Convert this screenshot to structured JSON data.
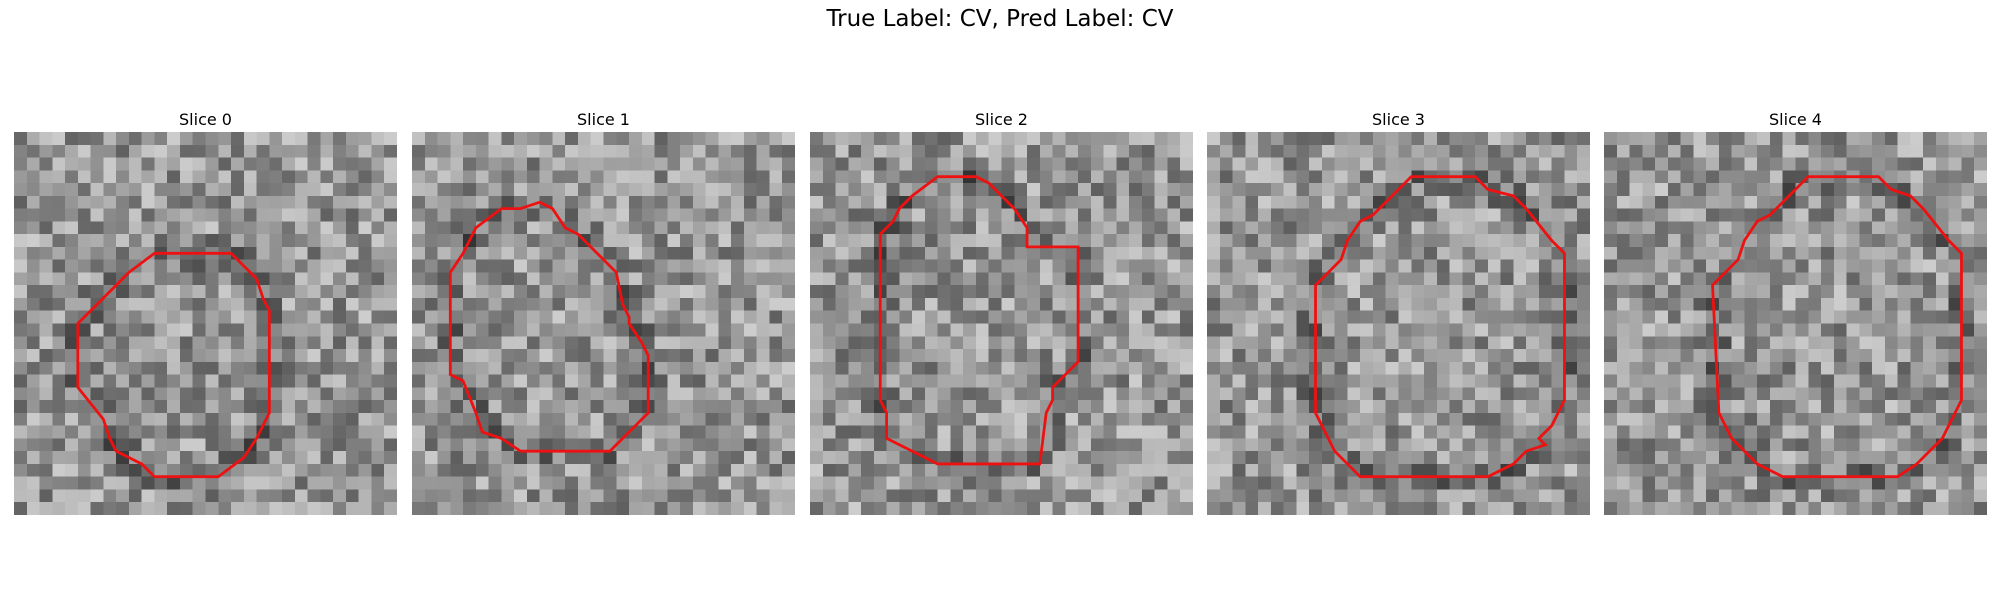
{
  "figure": {
    "title": "True Label: CV, Pred Label: CV",
    "contour_color": "#ee1111"
  },
  "slices": [
    {
      "title": "Slice 0"
    },
    {
      "title": "Slice 1"
    },
    {
      "title": "Slice 2"
    },
    {
      "title": "Slice 3"
    },
    {
      "title": "Slice 4"
    }
  ]
}
